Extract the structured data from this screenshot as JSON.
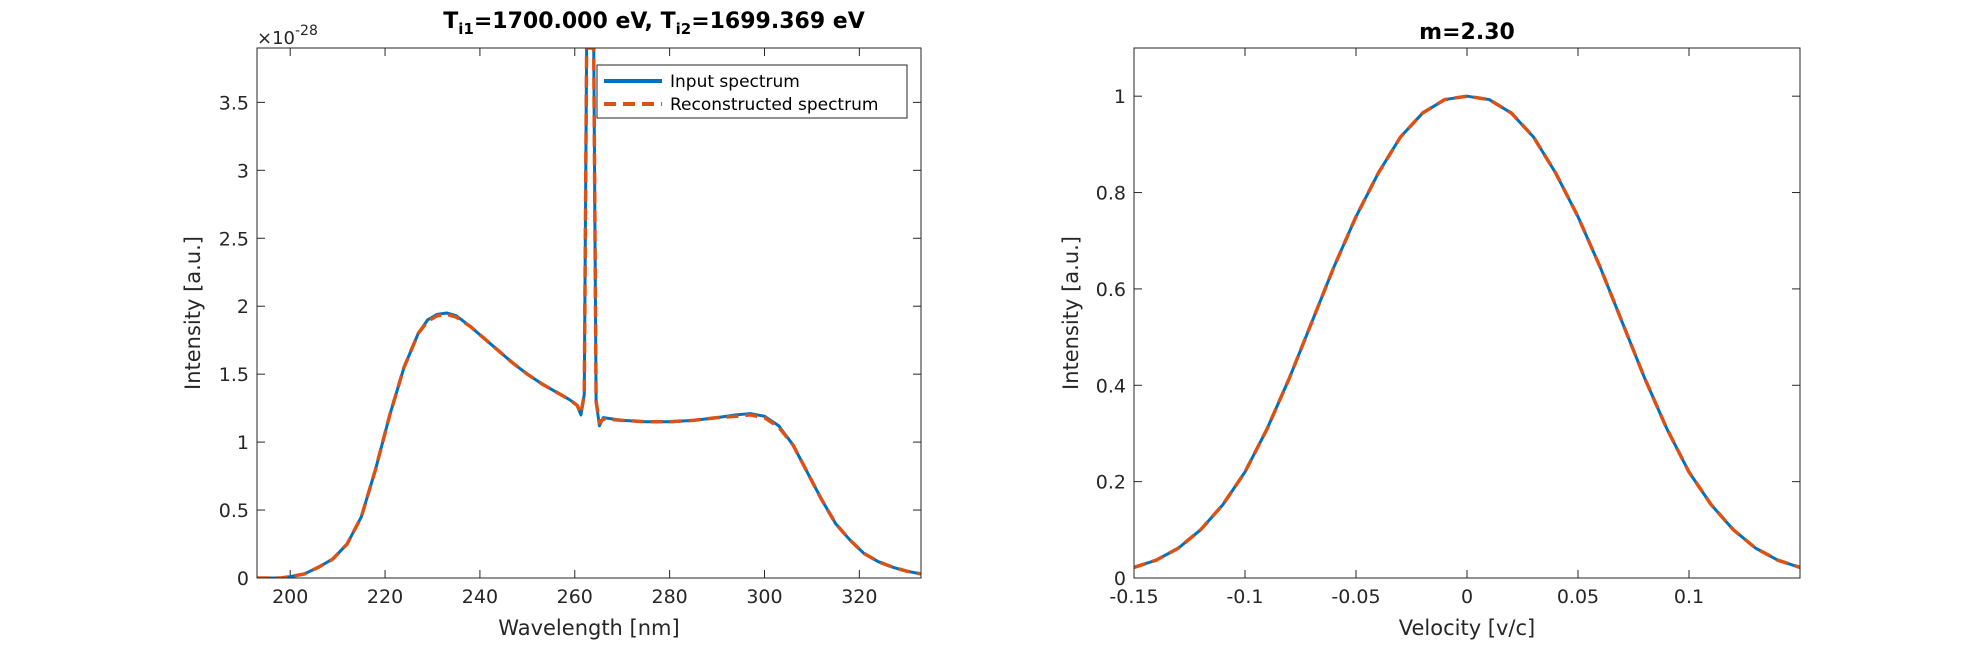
{
  "figure": {
    "charts": [
      "left",
      "right"
    ]
  },
  "chart_data": [
    {
      "type": "line",
      "title": "T{i1}=1700.000 eV, T{i2}=1699.369 eV",
      "title_parts": {
        "t1": "T",
        "t1_sub": "i1",
        "t1_val": "=1700.000 eV, ",
        "t2": "T",
        "t2_sub": "i2",
        "t2_val": "=1699.369 eV"
      },
      "xlabel": "Wavelength [nm]",
      "ylabel": "Intensity [a.u.]",
      "y_exponent_label": "×10",
      "y_exponent_power": "-28",
      "xlim": [
        193,
        333
      ],
      "ylim": [
        0,
        3.9
      ],
      "xticks": [
        200,
        220,
        240,
        260,
        280,
        300,
        320
      ],
      "xtick_labels": [
        "200",
        "220",
        "240",
        "260",
        "280",
        "300",
        "320"
      ],
      "yticks": [
        0,
        0.5,
        1,
        1.5,
        2,
        2.5,
        3,
        3.5
      ],
      "ytick_labels": [
        "0",
        "0.5",
        "1",
        "1.5",
        "2",
        "2.5",
        "3",
        "3.5"
      ],
      "grid": false,
      "legend_position": "top-right",
      "series": [
        {
          "name": "Input spectrum",
          "color": "#0072BD",
          "style": "solid",
          "points": [
            [
              193,
              0.0
            ],
            [
              198,
              0.0
            ],
            [
              200,
              0.01
            ],
            [
              203,
              0.03
            ],
            [
              206,
              0.08
            ],
            [
              209,
              0.14
            ],
            [
              212,
              0.25
            ],
            [
              215,
              0.45
            ],
            [
              218,
              0.8
            ],
            [
              221,
              1.2
            ],
            [
              224,
              1.55
            ],
            [
              227,
              1.8
            ],
            [
              229,
              1.9
            ],
            [
              231,
              1.94
            ],
            [
              233,
              1.95
            ],
            [
              235,
              1.93
            ],
            [
              238,
              1.85
            ],
            [
              241,
              1.76
            ],
            [
              244,
              1.67
            ],
            [
              247,
              1.58
            ],
            [
              250,
              1.5
            ],
            [
              253,
              1.43
            ],
            [
              256,
              1.37
            ],
            [
              259,
              1.31
            ],
            [
              260.5,
              1.27
            ],
            [
              261.3,
              1.2
            ],
            [
              262,
              1.35
            ],
            [
              262.5,
              3.9
            ],
            [
              264,
              3.9
            ],
            [
              264.5,
              1.3
            ],
            [
              265.2,
              1.12
            ],
            [
              266,
              1.18
            ],
            [
              270,
              1.16
            ],
            [
              275,
              1.15
            ],
            [
              280,
              1.15
            ],
            [
              285,
              1.16
            ],
            [
              290,
              1.18
            ],
            [
              294,
              1.2
            ],
            [
              297,
              1.21
            ],
            [
              300,
              1.19
            ],
            [
              303,
              1.12
            ],
            [
              306,
              0.98
            ],
            [
              309,
              0.78
            ],
            [
              312,
              0.58
            ],
            [
              315,
              0.4
            ],
            [
              318,
              0.28
            ],
            [
              321,
              0.18
            ],
            [
              324,
              0.12
            ],
            [
              327,
              0.08
            ],
            [
              330,
              0.05
            ],
            [
              333,
              0.03
            ]
          ]
        },
        {
          "name": "Reconstructed spectrum",
          "color": "#D95319",
          "style": "dashed",
          "points": [
            [
              193,
              0.0
            ],
            [
              198,
              0.0
            ],
            [
              200,
              0.01
            ],
            [
              203,
              0.03
            ],
            [
              206,
              0.08
            ],
            [
              209,
              0.14
            ],
            [
              212,
              0.25
            ],
            [
              215,
              0.45
            ],
            [
              218,
              0.8
            ],
            [
              221,
              1.2
            ],
            [
              224,
              1.55
            ],
            [
              227,
              1.8
            ],
            [
              229,
              1.89
            ],
            [
              231,
              1.93
            ],
            [
              233,
              1.94
            ],
            [
              235,
              1.92
            ],
            [
              238,
              1.85
            ],
            [
              241,
              1.76
            ],
            [
              244,
              1.67
            ],
            [
              247,
              1.58
            ],
            [
              250,
              1.5
            ],
            [
              253,
              1.43
            ],
            [
              256,
              1.37
            ],
            [
              259,
              1.31
            ],
            [
              260.5,
              1.27
            ],
            [
              261.3,
              1.21
            ],
            [
              262,
              1.35
            ],
            [
              262.5,
              3.9
            ],
            [
              264,
              3.9
            ],
            [
              264.5,
              1.3
            ],
            [
              265.2,
              1.14
            ],
            [
              266,
              1.17
            ],
            [
              270,
              1.16
            ],
            [
              275,
              1.15
            ],
            [
              280,
              1.15
            ],
            [
              285,
              1.16
            ],
            [
              290,
              1.18
            ],
            [
              294,
              1.19
            ],
            [
              297,
              1.2
            ],
            [
              300,
              1.18
            ],
            [
              303,
              1.11
            ],
            [
              306,
              0.98
            ],
            [
              309,
              0.78
            ],
            [
              312,
              0.58
            ],
            [
              315,
              0.4
            ],
            [
              318,
              0.28
            ],
            [
              321,
              0.18
            ],
            [
              324,
              0.12
            ],
            [
              327,
              0.08
            ],
            [
              330,
              0.05
            ],
            [
              333,
              0.03
            ]
          ]
        }
      ]
    },
    {
      "type": "line",
      "title": "m=2.30",
      "xlabel": "Velocity [v/c]",
      "ylabel": "Intensity [a.u.]",
      "xlim": [
        -0.15,
        0.15
      ],
      "ylim": [
        0,
        1.1
      ],
      "xticks": [
        -0.15,
        -0.1,
        -0.05,
        0,
        0.05,
        0.1
      ],
      "xtick_labels": [
        "-0.15",
        "-0.1",
        "-0.05",
        "0",
        "0.05",
        "0.1"
      ],
      "yticks": [
        0,
        0.2,
        0.4,
        0.6,
        0.8,
        1
      ],
      "ytick_labels": [
        "0",
        "0.2",
        "0.4",
        "0.6",
        "0.8",
        "1"
      ],
      "grid": false,
      "series": [
        {
          "color": "#0072BD",
          "style": "solid",
          "points": [
            [
              -0.15,
              0.022
            ],
            [
              -0.14,
              0.037
            ],
            [
              -0.13,
              0.062
            ],
            [
              -0.12,
              0.1
            ],
            [
              -0.11,
              0.152
            ],
            [
              -0.1,
              0.22
            ],
            [
              -0.09,
              0.31
            ],
            [
              -0.08,
              0.415
            ],
            [
              -0.07,
              0.53
            ],
            [
              -0.06,
              0.645
            ],
            [
              -0.05,
              0.75
            ],
            [
              -0.04,
              0.84
            ],
            [
              -0.03,
              0.915
            ],
            [
              -0.02,
              0.965
            ],
            [
              -0.01,
              0.993
            ],
            [
              0,
              1.0
            ],
            [
              0.01,
              0.993
            ],
            [
              0.02,
              0.965
            ],
            [
              0.03,
              0.915
            ],
            [
              0.04,
              0.84
            ],
            [
              0.05,
              0.75
            ],
            [
              0.06,
              0.645
            ],
            [
              0.07,
              0.53
            ],
            [
              0.08,
              0.415
            ],
            [
              0.09,
              0.31
            ],
            [
              0.1,
              0.22
            ],
            [
              0.11,
              0.152
            ],
            [
              0.12,
              0.1
            ],
            [
              0.13,
              0.062
            ],
            [
              0.14,
              0.037
            ],
            [
              0.15,
              0.022
            ]
          ]
        },
        {
          "color": "#D95319",
          "style": "dashed",
          "points": [
            [
              -0.15,
              0.022
            ],
            [
              -0.14,
              0.037
            ],
            [
              -0.13,
              0.062
            ],
            [
              -0.12,
              0.1
            ],
            [
              -0.11,
              0.152
            ],
            [
              -0.1,
              0.22
            ],
            [
              -0.09,
              0.31
            ],
            [
              -0.08,
              0.415
            ],
            [
              -0.07,
              0.53
            ],
            [
              -0.06,
              0.645
            ],
            [
              -0.05,
              0.75
            ],
            [
              -0.04,
              0.84
            ],
            [
              -0.03,
              0.915
            ],
            [
              -0.02,
              0.965
            ],
            [
              -0.01,
              0.993
            ],
            [
              0,
              1.0
            ],
            [
              0.01,
              0.993
            ],
            [
              0.02,
              0.965
            ],
            [
              0.03,
              0.915
            ],
            [
              0.04,
              0.84
            ],
            [
              0.05,
              0.75
            ],
            [
              0.06,
              0.645
            ],
            [
              0.07,
              0.53
            ],
            [
              0.08,
              0.415
            ],
            [
              0.09,
              0.31
            ],
            [
              0.1,
              0.22
            ],
            [
              0.11,
              0.152
            ],
            [
              0.12,
              0.1
            ],
            [
              0.13,
              0.062
            ],
            [
              0.14,
              0.037
            ],
            [
              0.15,
              0.022
            ]
          ]
        }
      ]
    }
  ]
}
